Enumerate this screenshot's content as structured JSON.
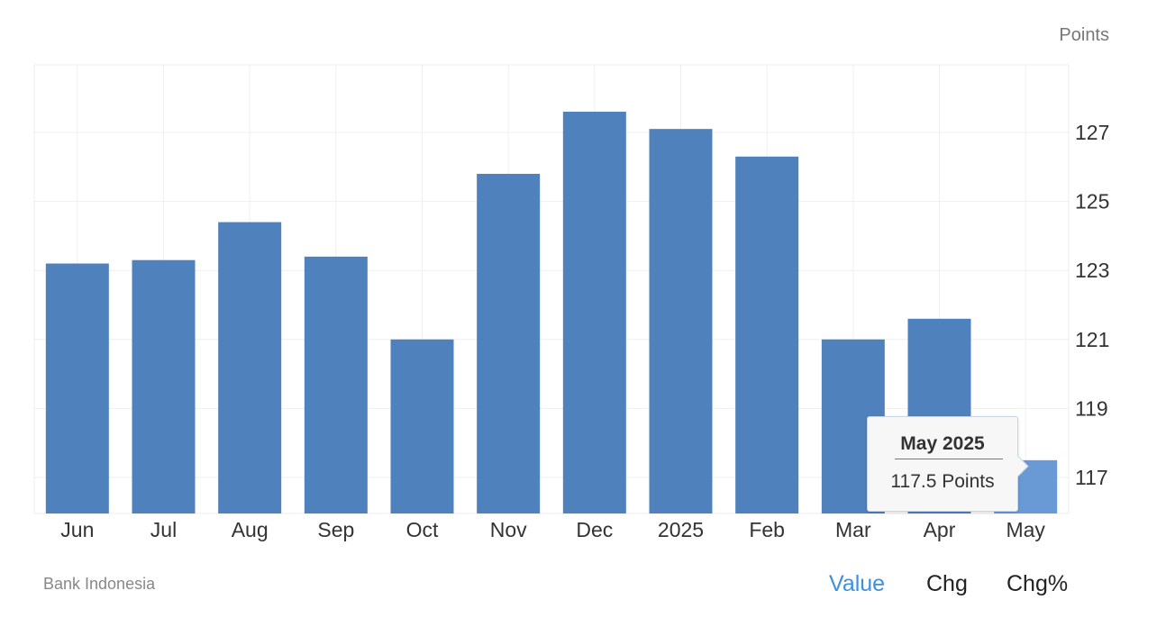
{
  "chart_data": {
    "type": "bar",
    "categories": [
      "Jun",
      "Jul",
      "Aug",
      "Sep",
      "Oct",
      "Nov",
      "Dec",
      "2025",
      "Feb",
      "Mar",
      "Apr",
      "May"
    ],
    "values": [
      123.2,
      123.3,
      124.4,
      123.4,
      121.0,
      125.8,
      127.6,
      127.1,
      126.3,
      121.0,
      121.6,
      117.5
    ],
    "ylabel": "Points",
    "ylim": [
      115.8,
      129
    ],
    "yticks": [
      117,
      119,
      121,
      123,
      125,
      127
    ],
    "grid": true,
    "bar_color": "#4f81bd",
    "highlight_color": "#6a9ad6",
    "highlight_index": 11
  },
  "unit_label": "Points",
  "source": "Bank Indonesia",
  "tooltip": {
    "title": "May 2025",
    "value": "117.5 Points"
  },
  "toggles": [
    {
      "label": "Value",
      "active": true,
      "color": "#3d8fe0"
    },
    {
      "label": "Chg",
      "active": false
    },
    {
      "label": "Chg%",
      "active": false
    }
  ]
}
